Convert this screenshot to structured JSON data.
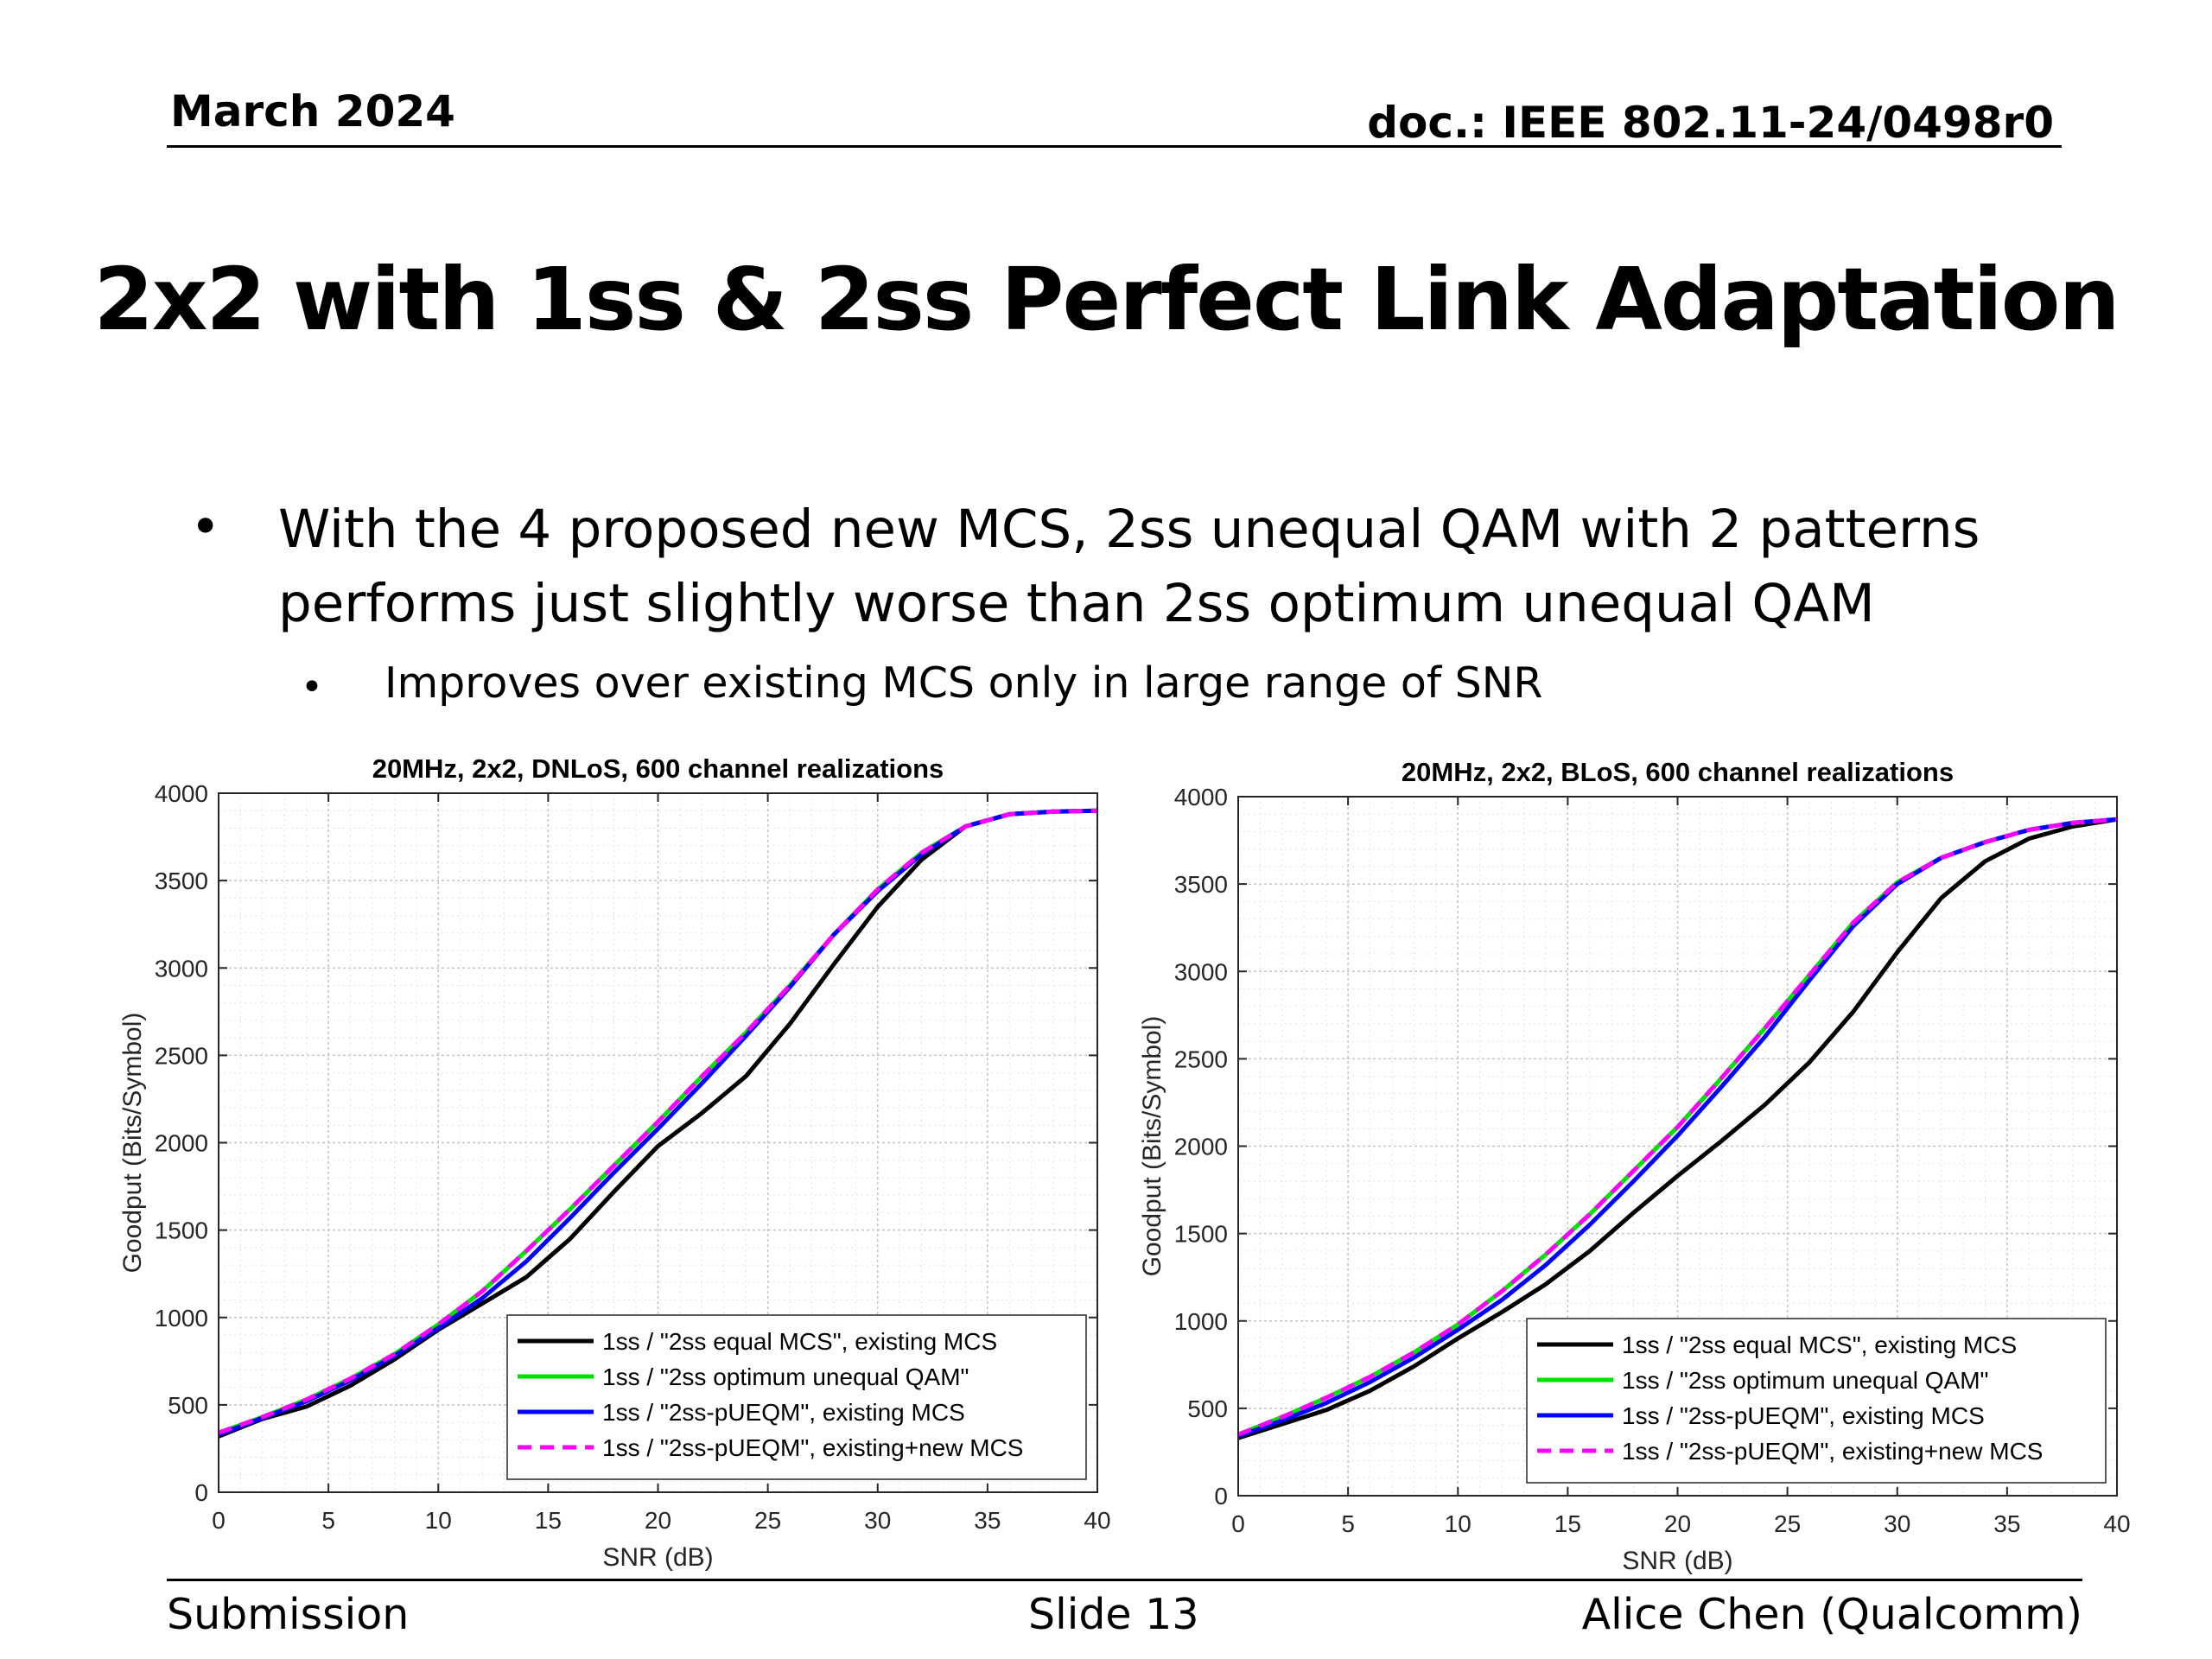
{
  "header": {
    "date": "March 2024",
    "doc": "doc.: IEEE 802.11-24/0498r0"
  },
  "slide_title": "2x2 with 1ss & 2ss Perfect Link Adaptation",
  "bullets": {
    "level1": "With the 4 proposed new MCS, 2ss unequal QAM with 2 patterns performs just slightly worse than 2ss optimum unequal QAM",
    "level2": "Improves over existing MCS only in large range of SNR"
  },
  "footer": {
    "left": "Submission",
    "center": "Slide 13",
    "right": "Alice Chen (Qualcomm)"
  },
  "chart_data": [
    {
      "type": "line",
      "title": "20MHz, 2x2, DNLoS, 600 channel realizations",
      "xlabel": "SNR (dB)",
      "ylabel": "Goodput (Bits/Symbol)",
      "xlim": [
        0,
        40
      ],
      "ylim": [
        0,
        4000
      ],
      "xticks": [
        0,
        5,
        10,
        15,
        20,
        25,
        30,
        35,
        40
      ],
      "yticks": [
        0,
        500,
        1000,
        1500,
        2000,
        2500,
        3000,
        3500,
        4000
      ],
      "grid": "major and minor dotted",
      "legend_position": "bottom-right",
      "x": [
        0,
        2,
        4,
        6,
        8,
        10,
        12,
        14,
        16,
        18,
        20,
        22,
        24,
        26,
        28,
        30,
        32,
        34,
        36,
        38,
        40
      ],
      "series": [
        {
          "name": "1ss / \"2ss equal MCS\", existing MCS",
          "color": "#000000",
          "dash": "solid",
          "values": [
            320,
            420,
            490,
            610,
            760,
            930,
            1080,
            1230,
            1450,
            1720,
            1980,
            2170,
            2380,
            2680,
            3020,
            3350,
            3620,
            3810,
            3880,
            3895,
            3900
          ]
        },
        {
          "name": "1ss / \"2ss optimum unequal QAM\"",
          "color": "#00e000",
          "dash": "solid",
          "values": [
            340,
            430,
            530,
            650,
            790,
            960,
            1150,
            1380,
            1620,
            1870,
            2120,
            2380,
            2630,
            2900,
            3190,
            3450,
            3660,
            3810,
            3880,
            3895,
            3900
          ]
        },
        {
          "name": "1ss / \"2ss-pUEQM\", existing MCS",
          "color": "#0000ff",
          "dash": "solid",
          "values": [
            330,
            425,
            520,
            640,
            780,
            940,
            1110,
            1320,
            1570,
            1830,
            2080,
            2340,
            2610,
            2890,
            3190,
            3440,
            3650,
            3810,
            3880,
            3895,
            3900
          ]
        },
        {
          "name": "1ss / \"2ss-pUEQM\", existing+new MCS",
          "color": "#ff00ff",
          "dash": "dashed",
          "values": [
            340,
            430,
            530,
            650,
            790,
            960,
            1150,
            1380,
            1620,
            1870,
            2120,
            2380,
            2630,
            2900,
            3190,
            3450,
            3660,
            3810,
            3880,
            3895,
            3900
          ]
        }
      ]
    },
    {
      "type": "line",
      "title": "20MHz, 2x2, BLoS, 600 channel realizations",
      "xlabel": "SNR (dB)",
      "ylabel": "Goodput (Bits/Symbol)",
      "xlim": [
        0,
        40
      ],
      "ylim": [
        0,
        4000
      ],
      "xticks": [
        0,
        5,
        10,
        15,
        20,
        25,
        30,
        35,
        40
      ],
      "yticks": [
        0,
        500,
        1000,
        1500,
        2000,
        2500,
        3000,
        3500,
        4000
      ],
      "grid": "major and minor dotted",
      "legend_position": "bottom-right",
      "x": [
        0,
        2,
        4,
        6,
        8,
        10,
        12,
        14,
        16,
        18,
        20,
        22,
        24,
        26,
        28,
        30,
        32,
        34,
        36,
        38,
        40
      ],
      "series": [
        {
          "name": "1ss / \"2ss equal MCS\", existing MCS",
          "color": "#000000",
          "dash": "solid",
          "values": [
            330,
            410,
            490,
            600,
            740,
            900,
            1050,
            1210,
            1400,
            1620,
            1830,
            2030,
            2240,
            2480,
            2770,
            3110,
            3420,
            3630,
            3760,
            3830,
            3870
          ]
        },
        {
          "name": "1ss / \"2ss optimum unequal QAM\"",
          "color": "#00e000",
          "dash": "solid",
          "values": [
            350,
            450,
            560,
            680,
            820,
            980,
            1170,
            1380,
            1610,
            1860,
            2110,
            2390,
            2680,
            2980,
            3280,
            3510,
            3650,
            3740,
            3810,
            3850,
            3870
          ]
        },
        {
          "name": "1ss / \"2ss-pUEQM\", existing MCS",
          "color": "#0000ff",
          "dash": "solid",
          "values": [
            340,
            430,
            530,
            650,
            790,
            950,
            1120,
            1320,
            1550,
            1800,
            2060,
            2340,
            2630,
            2950,
            3260,
            3500,
            3650,
            3740,
            3810,
            3850,
            3870
          ]
        },
        {
          "name": "1ss / \"2ss-pUEQM\", existing+new MCS",
          "color": "#ff00ff",
          "dash": "dashed",
          "values": [
            350,
            450,
            560,
            680,
            820,
            980,
            1170,
            1380,
            1610,
            1860,
            2110,
            2390,
            2680,
            2980,
            3280,
            3510,
            3650,
            3740,
            3810,
            3850,
            3870
          ]
        }
      ]
    }
  ]
}
